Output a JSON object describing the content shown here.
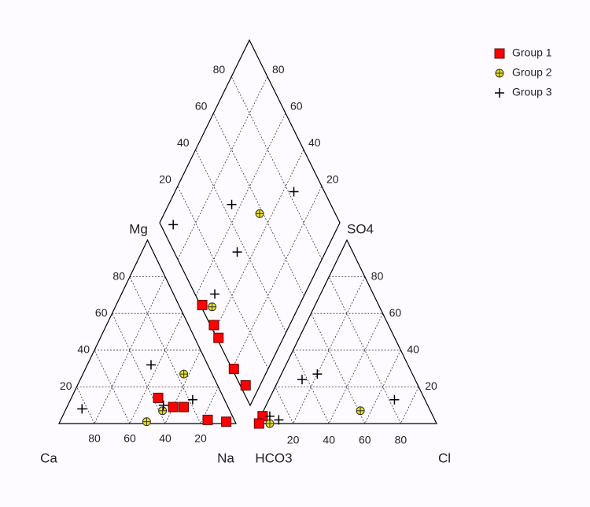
{
  "chart_data": {
    "type": "piper",
    "axis_labels": {
      "mg": "Mg",
      "ca": "Ca",
      "na": "Na",
      "hco3": "HCO3",
      "so4": "SO4",
      "cl": "Cl"
    },
    "ticks": [
      20,
      40,
      60,
      80
    ],
    "grid": true,
    "series": [
      {
        "name": "Group 1",
        "color": "#ff0000",
        "marker": "square",
        "cation_na": [
          49,
          60,
          66,
          83,
          94
        ],
        "cation_mg": [
          14,
          9,
          9,
          2,
          1
        ],
        "diamond_so4cl": [
          1,
          2,
          1,
          1,
          3
        ],
        "diamond_camg": [
          54,
          42,
          36,
          19,
          8
        ],
        "anion_cl": [
          1,
          1
        ],
        "anion_so4": [
          4,
          0
        ]
      },
      {
        "name": "Group 2",
        "color": "#e8e020",
        "marker": "circle-plus",
        "cation_na": [
          49,
          55,
          57
        ],
        "cation_mg": [
          1,
          7,
          27
        ],
        "diamond_so4cl": [
          58,
          6
        ],
        "diamond_camg": [
          47,
          48
        ],
        "anion_cl": [
          54,
          7
        ],
        "anion_so4": [
          7,
          0
        ]
      },
      {
        "name": "Group 3",
        "color": "#000000",
        "marker": "plus",
        "cation_na": [
          9,
          36,
          69,
          54
        ],
        "cation_mg": [
          8,
          32,
          13,
          10
        ],
        "diamond_so4cl": [
          45,
          83,
          7,
          35,
          11
        ],
        "diamond_camg": [
          65,
          34,
          92,
          49,
          50
        ],
        "anion_cl": [
          13,
          20,
          11,
          5,
          70
        ],
        "anion_so4": [
          24,
          27,
          2,
          4,
          13
        ]
      }
    ]
  }
}
